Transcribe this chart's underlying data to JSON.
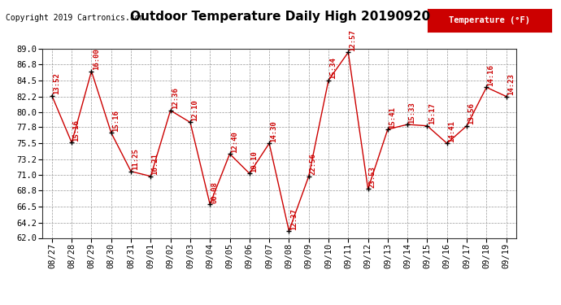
{
  "title": "Outdoor Temperature Daily High 20190920",
  "copyright": "Copyright 2019 Cartronics.com",
  "legend_label": "Temperature (°F)",
  "dates": [
    "08/27",
    "08/28",
    "08/29",
    "08/30",
    "08/31",
    "09/01",
    "09/02",
    "09/03",
    "09/04",
    "09/05",
    "09/06",
    "09/07",
    "09/08",
    "09/09",
    "09/10",
    "09/11",
    "09/12",
    "09/13",
    "09/14",
    "09/15",
    "09/16",
    "09/17",
    "09/18",
    "09/19"
  ],
  "temperatures": [
    82.3,
    75.6,
    85.8,
    77.0,
    71.5,
    70.8,
    80.2,
    78.5,
    66.8,
    74.0,
    71.2,
    75.5,
    63.0,
    70.8,
    84.5,
    88.5,
    69.0,
    77.5,
    78.2,
    78.0,
    75.5,
    78.0,
    83.5,
    82.2
  ],
  "labels": [
    "13:52",
    "15:16",
    "16:00",
    "15:16",
    "11:25",
    "16:21",
    "12:36",
    "12:10",
    "00:08",
    "12:40",
    "10:10",
    "14:30",
    "12:37",
    "22:56",
    "15:34",
    "12:57",
    "23:53",
    "15:41",
    "15:33",
    "15:17",
    "14:41",
    "13:56",
    "14:16",
    "14:23"
  ],
  "ylim": [
    62.0,
    89.0
  ],
  "yticks": [
    62.0,
    64.2,
    66.5,
    68.8,
    71.0,
    73.2,
    75.5,
    77.8,
    80.0,
    82.2,
    84.5,
    86.8,
    89.0
  ],
  "line_color": "#cc0000",
  "marker_color": "#000000",
  "label_color": "#cc0000",
  "background_color": "#ffffff",
  "plot_bg_color": "#ffffff",
  "grid_color": "#999999",
  "title_fontsize": 11,
  "label_fontsize": 6.5,
  "copyright_fontsize": 7,
  "tick_fontsize": 7.5
}
